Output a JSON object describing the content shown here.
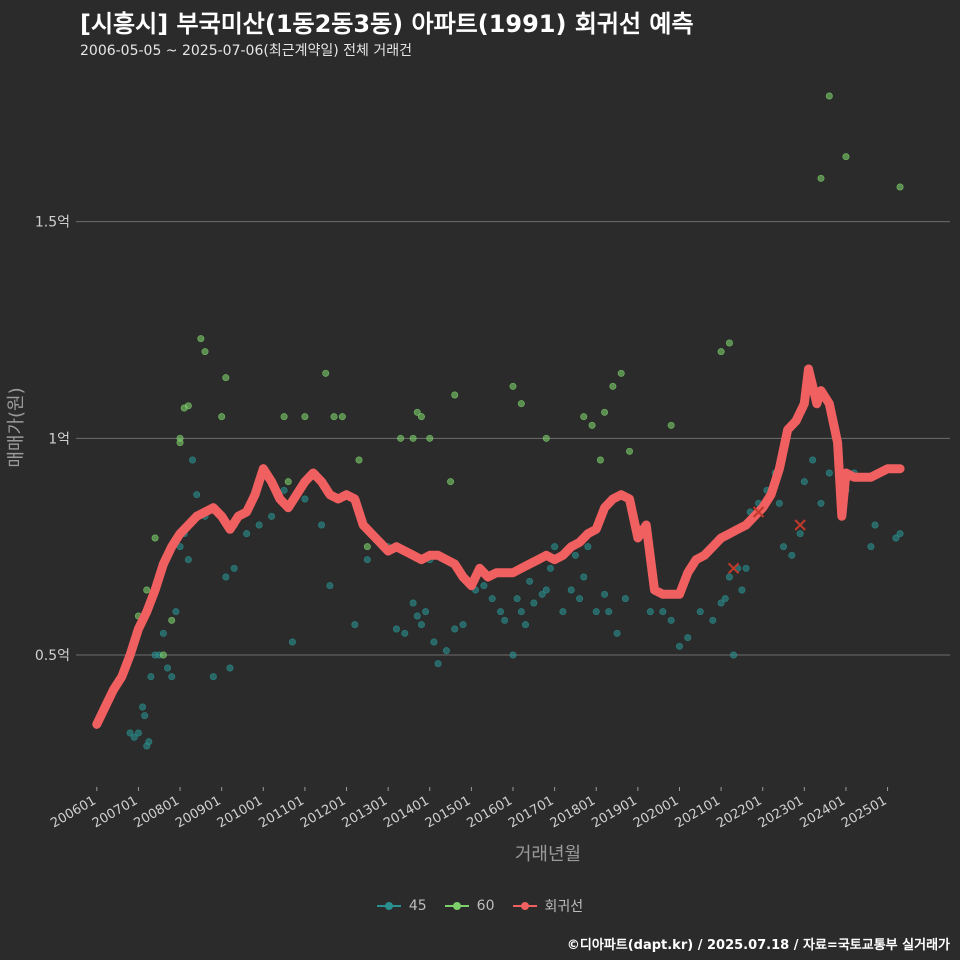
{
  "title": "[시흥시] 부국미산(1동2동3동) 아파트(1991) 회귀선 예측",
  "subtitle": "2006-05-05 ~ 2025-07-06(최근계약일) 전체 거래건",
  "footer": "©디아파트(dapt.kr) / 2025.07.18 / 자료=국토교통부 실거래가",
  "colors": {
    "background": "#2b2b2b",
    "grid": "#6e6e6e",
    "s45": "#2a8f8f",
    "s60": "#7ccf6a",
    "regression": "#f06060"
  },
  "legend": [
    {
      "label": "45",
      "color": "#2a8f8f"
    },
    {
      "label": "60",
      "color": "#7ccf6a"
    },
    {
      "label": "회귀선",
      "color": "#f06060"
    }
  ],
  "chart_data": {
    "type": "scatter",
    "title": "[시흥시] 부국미산(1동2동3동) 아파트(1991) 회귀선 예측",
    "xlabel": "거래년월",
    "ylabel": "매매가(원)",
    "xlim": [
      2005.5,
      2026.5
    ],
    "ylim": [
      0.2,
      1.85
    ],
    "x_ticks": [
      2006,
      2007,
      2008,
      2009,
      2010,
      2011,
      2012,
      2013,
      2014,
      2015,
      2016,
      2017,
      2018,
      2019,
      2020,
      2021,
      2022,
      2023,
      2024,
      2025
    ],
    "x_tick_labels": [
      "200601",
      "200701",
      "200801",
      "200901",
      "201001",
      "201101",
      "201201",
      "201301",
      "201401",
      "201501",
      "201601",
      "201701",
      "201801",
      "201901",
      "202001",
      "202101",
      "202201",
      "202301",
      "202401",
      "202501"
    ],
    "y_ticks": [
      0.5,
      1.0,
      1.5
    ],
    "y_tick_labels": [
      "0.5억",
      "1억",
      "1.5억"
    ],
    "grid": true,
    "legend_position": "bottom",
    "series": [
      {
        "name": "45",
        "points": [
          [
            2006.8,
            0.32
          ],
          [
            2006.9,
            0.31
          ],
          [
            2007.0,
            0.32
          ],
          [
            2007.1,
            0.38
          ],
          [
            2007.15,
            0.36
          ],
          [
            2007.2,
            0.29
          ],
          [
            2007.25,
            0.3
          ],
          [
            2007.3,
            0.45
          ],
          [
            2007.4,
            0.5
          ],
          [
            2007.5,
            0.5
          ],
          [
            2007.6,
            0.55
          ],
          [
            2007.7,
            0.47
          ],
          [
            2007.8,
            0.45
          ],
          [
            2007.9,
            0.6
          ],
          [
            2008.0,
            0.75
          ],
          [
            2008.1,
            0.78
          ],
          [
            2008.2,
            0.72
          ],
          [
            2008.3,
            0.95
          ],
          [
            2008.4,
            0.87
          ],
          [
            2008.6,
            0.82
          ],
          [
            2008.8,
            0.45
          ],
          [
            2009.1,
            0.68
          ],
          [
            2009.2,
            0.47
          ],
          [
            2009.3,
            0.7
          ],
          [
            2009.6,
            0.78
          ],
          [
            2009.9,
            0.8
          ],
          [
            2010.2,
            0.82
          ],
          [
            2010.5,
            0.88
          ],
          [
            2010.7,
            0.53
          ],
          [
            2011.0,
            0.86
          ],
          [
            2011.4,
            0.8
          ],
          [
            2011.6,
            0.66
          ],
          [
            2012.2,
            0.57
          ],
          [
            2012.5,
            0.72
          ],
          [
            2013.0,
            0.75
          ],
          [
            2013.2,
            0.56
          ],
          [
            2013.4,
            0.55
          ],
          [
            2013.6,
            0.62
          ],
          [
            2013.7,
            0.59
          ],
          [
            2013.8,
            0.57
          ],
          [
            2013.9,
            0.6
          ],
          [
            2014.0,
            0.72
          ],
          [
            2014.1,
            0.53
          ],
          [
            2014.2,
            0.48
          ],
          [
            2014.4,
            0.51
          ],
          [
            2014.6,
            0.56
          ],
          [
            2014.8,
            0.57
          ],
          [
            2015.1,
            0.65
          ],
          [
            2015.3,
            0.66
          ],
          [
            2015.5,
            0.63
          ],
          [
            2015.7,
            0.6
          ],
          [
            2015.8,
            0.58
          ],
          [
            2016.0,
            0.5
          ],
          [
            2016.1,
            0.63
          ],
          [
            2016.2,
            0.6
          ],
          [
            2016.3,
            0.57
          ],
          [
            2016.4,
            0.67
          ],
          [
            2016.5,
            0.62
          ],
          [
            2016.7,
            0.64
          ],
          [
            2016.8,
            0.65
          ],
          [
            2016.9,
            0.7
          ],
          [
            2017.0,
            0.75
          ],
          [
            2017.2,
            0.6
          ],
          [
            2017.4,
            0.65
          ],
          [
            2017.5,
            0.73
          ],
          [
            2017.6,
            0.63
          ],
          [
            2017.7,
            0.68
          ],
          [
            2017.8,
            0.75
          ],
          [
            2018.0,
            0.6
          ],
          [
            2018.2,
            0.64
          ],
          [
            2018.3,
            0.6
          ],
          [
            2018.5,
            0.55
          ],
          [
            2018.7,
            0.63
          ],
          [
            2019.3,
            0.6
          ],
          [
            2019.6,
            0.6
          ],
          [
            2019.8,
            0.58
          ],
          [
            2020.0,
            0.52
          ],
          [
            2020.2,
            0.54
          ],
          [
            2020.5,
            0.6
          ],
          [
            2020.8,
            0.58
          ],
          [
            2021.0,
            0.62
          ],
          [
            2021.1,
            0.63
          ],
          [
            2021.2,
            0.68
          ],
          [
            2021.3,
            0.5
          ],
          [
            2021.4,
            0.7
          ],
          [
            2021.5,
            0.65
          ],
          [
            2021.6,
            0.7
          ],
          [
            2021.7,
            0.83
          ],
          [
            2021.9,
            0.85
          ],
          [
            2022.1,
            0.88
          ],
          [
            2022.3,
            0.92
          ],
          [
            2022.4,
            0.85
          ],
          [
            2022.5,
            0.75
          ],
          [
            2022.7,
            0.73
          ],
          [
            2022.9,
            0.78
          ],
          [
            2023.0,
            0.9
          ],
          [
            2023.2,
            0.95
          ],
          [
            2023.4,
            0.85
          ],
          [
            2023.6,
            0.92
          ],
          [
            2024.0,
            0.88
          ],
          [
            2024.2,
            0.92
          ],
          [
            2024.6,
            0.75
          ],
          [
            2024.7,
            0.8
          ],
          [
            2025.2,
            0.77
          ],
          [
            2025.3,
            0.78
          ]
        ]
      },
      {
        "name": "60",
        "points": [
          [
            2007.0,
            0.59
          ],
          [
            2007.2,
            0.65
          ],
          [
            2007.4,
            0.77
          ],
          [
            2007.6,
            0.5
          ],
          [
            2007.8,
            0.58
          ],
          [
            2008.0,
            0.99
          ],
          [
            2008.0,
            1.0
          ],
          [
            2008.1,
            1.07
          ],
          [
            2008.2,
            1.075
          ],
          [
            2008.5,
            1.23
          ],
          [
            2008.6,
            1.2
          ],
          [
            2009.0,
            1.05
          ],
          [
            2009.1,
            1.14
          ],
          [
            2009.3,
            0.8
          ],
          [
            2010.5,
            1.05
          ],
          [
            2010.6,
            0.9
          ],
          [
            2011.0,
            1.05
          ],
          [
            2011.5,
            1.15
          ],
          [
            2011.7,
            1.05
          ],
          [
            2011.9,
            1.05
          ],
          [
            2012.3,
            0.95
          ],
          [
            2012.5,
            0.75
          ],
          [
            2013.3,
            1.0
          ],
          [
            2013.6,
            1.0
          ],
          [
            2013.7,
            1.06
          ],
          [
            2013.8,
            1.05
          ],
          [
            2014.0,
            1.0
          ],
          [
            2014.5,
            0.9
          ],
          [
            2014.6,
            1.1
          ],
          [
            2016.0,
            1.12
          ],
          [
            2016.2,
            1.08
          ],
          [
            2016.8,
            1.0
          ],
          [
            2017.7,
            1.05
          ],
          [
            2017.9,
            1.03
          ],
          [
            2018.1,
            0.95
          ],
          [
            2018.2,
            1.06
          ],
          [
            2018.4,
            1.12
          ],
          [
            2018.6,
            1.15
          ],
          [
            2018.8,
            0.97
          ],
          [
            2019.8,
            1.03
          ],
          [
            2021.0,
            1.2
          ],
          [
            2021.2,
            1.22
          ],
          [
            2023.4,
            1.6
          ],
          [
            2023.6,
            1.79
          ],
          [
            2024.0,
            1.65
          ],
          [
            2025.3,
            1.58
          ]
        ]
      }
    ],
    "regression": [
      [
        2006.0,
        0.34
      ],
      [
        2006.2,
        0.38
      ],
      [
        2006.4,
        0.42
      ],
      [
        2006.6,
        0.45
      ],
      [
        2006.8,
        0.5
      ],
      [
        2007.0,
        0.56
      ],
      [
        2007.2,
        0.6
      ],
      [
        2007.4,
        0.65
      ],
      [
        2007.6,
        0.71
      ],
      [
        2007.8,
        0.75
      ],
      [
        2008.0,
        0.78
      ],
      [
        2008.2,
        0.8
      ],
      [
        2008.4,
        0.82
      ],
      [
        2008.6,
        0.83
      ],
      [
        2008.8,
        0.84
      ],
      [
        2009.0,
        0.82
      ],
      [
        2009.2,
        0.79
      ],
      [
        2009.4,
        0.82
      ],
      [
        2009.6,
        0.83
      ],
      [
        2009.8,
        0.87
      ],
      [
        2010.0,
        0.93
      ],
      [
        2010.2,
        0.9
      ],
      [
        2010.4,
        0.86
      ],
      [
        2010.6,
        0.84
      ],
      [
        2010.8,
        0.87
      ],
      [
        2011.0,
        0.9
      ],
      [
        2011.2,
        0.92
      ],
      [
        2011.4,
        0.9
      ],
      [
        2011.6,
        0.87
      ],
      [
        2011.8,
        0.86
      ],
      [
        2012.0,
        0.87
      ],
      [
        2012.2,
        0.86
      ],
      [
        2012.4,
        0.8
      ],
      [
        2012.6,
        0.78
      ],
      [
        2012.8,
        0.76
      ],
      [
        2013.0,
        0.74
      ],
      [
        2013.2,
        0.75
      ],
      [
        2013.4,
        0.74
      ],
      [
        2013.6,
        0.73
      ],
      [
        2013.8,
        0.72
      ],
      [
        2014.0,
        0.73
      ],
      [
        2014.2,
        0.73
      ],
      [
        2014.4,
        0.72
      ],
      [
        2014.6,
        0.71
      ],
      [
        2014.8,
        0.68
      ],
      [
        2015.0,
        0.66
      ],
      [
        2015.2,
        0.7
      ],
      [
        2015.4,
        0.68
      ],
      [
        2015.6,
        0.69
      ],
      [
        2015.8,
        0.69
      ],
      [
        2016.0,
        0.69
      ],
      [
        2016.2,
        0.7
      ],
      [
        2016.4,
        0.71
      ],
      [
        2016.6,
        0.72
      ],
      [
        2016.8,
        0.73
      ],
      [
        2017.0,
        0.72
      ],
      [
        2017.2,
        0.73
      ],
      [
        2017.4,
        0.75
      ],
      [
        2017.6,
        0.76
      ],
      [
        2017.8,
        0.78
      ],
      [
        2018.0,
        0.79
      ],
      [
        2018.2,
        0.84
      ],
      [
        2018.4,
        0.86
      ],
      [
        2018.6,
        0.87
      ],
      [
        2018.8,
        0.86
      ],
      [
        2019.0,
        0.77
      ],
      [
        2019.2,
        0.8
      ],
      [
        2019.4,
        0.65
      ],
      [
        2019.6,
        0.64
      ],
      [
        2019.8,
        0.64
      ],
      [
        2020.0,
        0.64
      ],
      [
        2020.2,
        0.69
      ],
      [
        2020.4,
        0.72
      ],
      [
        2020.6,
        0.73
      ],
      [
        2020.8,
        0.75
      ],
      [
        2021.0,
        0.77
      ],
      [
        2021.2,
        0.78
      ],
      [
        2021.4,
        0.79
      ],
      [
        2021.6,
        0.8
      ],
      [
        2021.8,
        0.82
      ],
      [
        2022.0,
        0.84
      ],
      [
        2022.2,
        0.87
      ],
      [
        2022.4,
        0.93
      ],
      [
        2022.6,
        1.02
      ],
      [
        2022.8,
        1.04
      ],
      [
        2023.0,
        1.08
      ],
      [
        2023.1,
        1.16
      ],
      [
        2023.2,
        1.12
      ],
      [
        2023.3,
        1.08
      ],
      [
        2023.4,
        1.11
      ],
      [
        2023.6,
        1.08
      ],
      [
        2023.8,
        0.99
      ],
      [
        2023.9,
        0.82
      ],
      [
        2024.0,
        0.92
      ],
      [
        2024.2,
        0.91
      ],
      [
        2024.4,
        0.91
      ],
      [
        2024.6,
        0.91
      ],
      [
        2024.8,
        0.92
      ],
      [
        2025.0,
        0.93
      ],
      [
        2025.3,
        0.93
      ]
    ],
    "outliers": [
      [
        2021.3,
        0.7
      ],
      [
        2021.9,
        0.83
      ],
      [
        2022.9,
        0.8
      ]
    ]
  }
}
